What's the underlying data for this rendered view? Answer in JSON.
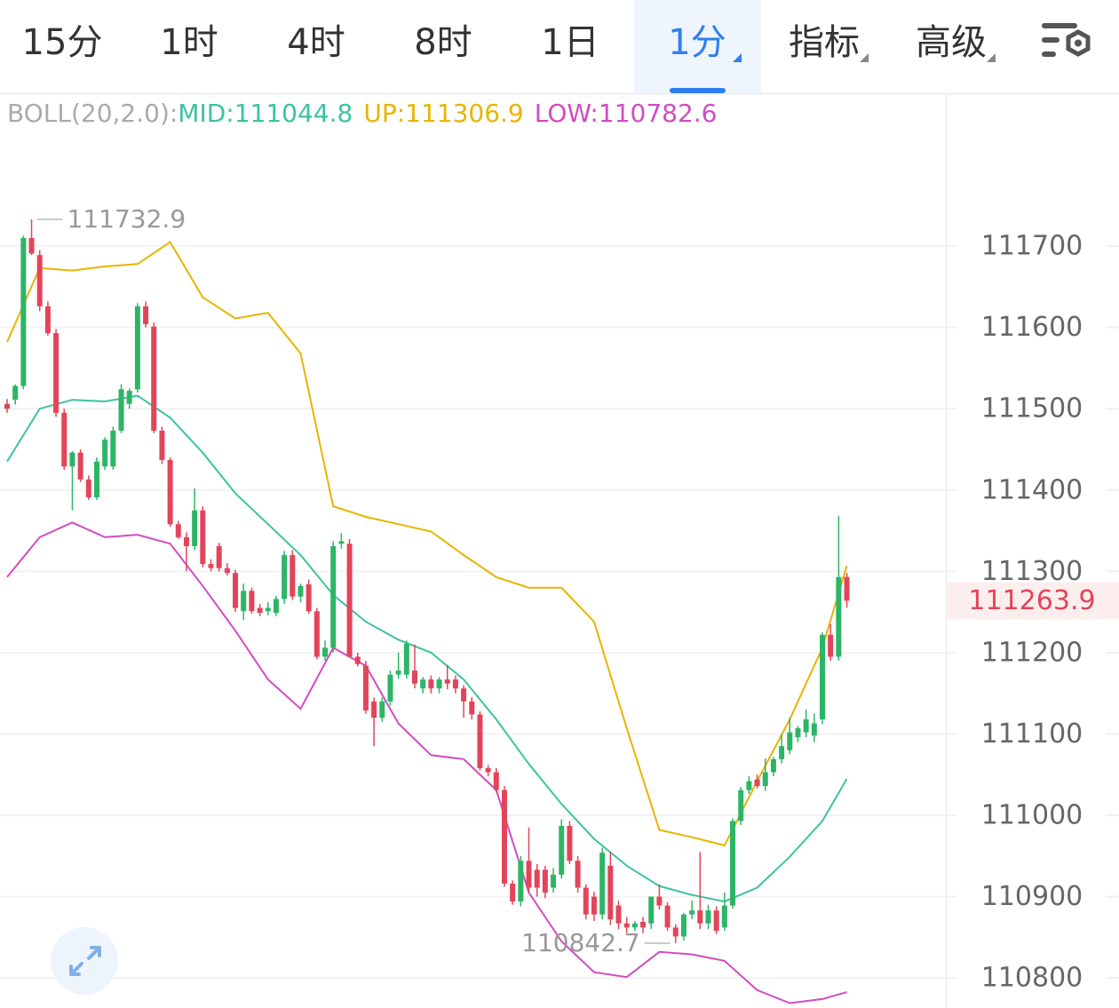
{
  "tabs": [
    "15分",
    "1时",
    "4时",
    "8时",
    "1日",
    "1分",
    "指标",
    "高级"
  ],
  "active_tab": 5,
  "chart_data": {
    "type": "candlestick",
    "ylim": [
      110763,
      111888
    ],
    "yticks": [
      110800,
      110900,
      111000,
      111100,
      111200,
      111300,
      111400,
      111500,
      111600,
      111700
    ],
    "grid": true,
    "up_color": "#2db566",
    "down_color": "#e2455a",
    "candles": [
      [
        111506,
        111512,
        111495,
        111500
      ],
      [
        111511,
        111530,
        111505,
        111528
      ],
      [
        111528,
        111713,
        111524,
        111710
      ],
      [
        111710,
        111732.9,
        111689,
        111691
      ],
      [
        111689,
        111695,
        111620,
        111626
      ],
      [
        111626,
        111632,
        111590,
        111593
      ],
      [
        111593,
        111598,
        111490,
        111495
      ],
      [
        111495,
        111500,
        111425,
        111429
      ],
      [
        111429,
        111448,
        111375,
        111446
      ],
      [
        111446,
        111450,
        111410,
        111413
      ],
      [
        111413,
        111418,
        111388,
        111391
      ],
      [
        111391,
        111440,
        111388,
        111435
      ],
      [
        111429,
        111465,
        111425,
        111462
      ],
      [
        111429,
        111478,
        111425,
        111473
      ],
      [
        111473,
        111530,
        111470,
        111524
      ],
      [
        111506,
        111525,
        111500,
        111522
      ],
      [
        111524,
        111630,
        111520,
        111626
      ],
      [
        111626,
        111632,
        111600,
        111604
      ],
      [
        111601,
        111606,
        111470,
        111473
      ],
      [
        111473,
        111478,
        111432,
        111437
      ],
      [
        111437,
        111440,
        111355,
        111358
      ],
      [
        111358,
        111362,
        111340,
        111342
      ],
      [
        111342,
        111348,
        111300,
        111331
      ],
      [
        111331,
        111402,
        111326,
        111375
      ],
      [
        111375,
        111380,
        111305,
        111309
      ],
      [
        111309,
        111315,
        111300,
        111304
      ],
      [
        111331,
        111335,
        111300,
        111304
      ],
      [
        111304,
        111310,
        111295,
        111298
      ],
      [
        111298,
        111302,
        111250,
        111255
      ],
      [
        111251,
        111285,
        111240,
        111276
      ],
      [
        111276,
        111280,
        111248,
        111251
      ],
      [
        111255,
        111260,
        111245,
        111249
      ],
      [
        111251,
        111262,
        111246,
        111255
      ],
      [
        111249,
        111270,
        111245,
        111266
      ],
      [
        111266,
        111325,
        111260,
        111320
      ],
      [
        111320,
        111326,
        111265,
        111269
      ],
      [
        111269,
        111285,
        111262,
        111282
      ],
      [
        111284,
        111290,
        111248,
        111251
      ],
      [
        111251,
        111255,
        111192,
        111195
      ],
      [
        111195,
        111215,
        111190,
        111206
      ],
      [
        111206,
        111337,
        111200,
        111331
      ],
      [
        111334,
        111347,
        111328,
        111337
      ],
      [
        111334,
        111340,
        111198,
        111195
      ],
      [
        111195,
        111200,
        111183,
        111186
      ],
      [
        111184,
        111190,
        111125,
        111129
      ],
      [
        111140,
        111145,
        111085,
        111120
      ],
      [
        111120,
        111145,
        111115,
        111140
      ],
      [
        111140,
        111178,
        111135,
        111173
      ],
      [
        111173,
        111200,
        111168,
        111178
      ],
      [
        111173,
        111215,
        111168,
        111211
      ],
      [
        111178,
        111210,
        111156,
        111162
      ],
      [
        111156,
        111170,
        111150,
        111167
      ],
      [
        111167,
        111172,
        111150,
        111156
      ],
      [
        111156,
        111170,
        111150,
        111167
      ],
      [
        111167,
        111185,
        111155,
        111162
      ],
      [
        111167,
        111172,
        111150,
        111156
      ],
      [
        111156,
        111160,
        111120,
        111140
      ],
      [
        111140,
        111145,
        111118,
        111124
      ],
      [
        111124,
        111128,
        111055,
        111058
      ],
      [
        111058,
        111062,
        111048,
        111053
      ],
      [
        111053,
        111058,
        111028,
        111031
      ],
      [
        111031,
        111036,
        110912,
        110916
      ],
      [
        110916,
        110920,
        110890,
        110894
      ],
      [
        110894,
        110950,
        110888,
        110944
      ],
      [
        110944,
        110985,
        110905,
        110911
      ],
      [
        110933,
        110940,
        110900,
        110911
      ],
      [
        110933,
        110938,
        110898,
        110905
      ],
      [
        110911,
        110935,
        110905,
        110927
      ],
      [
        110927,
        110995,
        110922,
        110987
      ],
      [
        110987,
        110993,
        110940,
        110944
      ],
      [
        110944,
        110950,
        110905,
        110911
      ],
      [
        110911,
        110915,
        110872,
        110878
      ],
      [
        110900,
        110906,
        110870,
        110878
      ],
      [
        110878,
        110960,
        110872,
        110954
      ],
      [
        110938,
        110955,
        110865,
        110872
      ],
      [
        110889,
        110895,
        110860,
        110867
      ],
      [
        110867,
        110875,
        110855,
        110862
      ],
      [
        110862,
        110870,
        110858,
        110867
      ],
      [
        110869,
        110875,
        110855,
        110862
      ],
      [
        110867,
        110900,
        110860,
        110900
      ],
      [
        110900,
        110915,
        110884,
        110889
      ],
      [
        110889,
        110893,
        110858,
        110862
      ],
      [
        110862,
        110866,
        110842.7,
        110851
      ],
      [
        110851,
        110880,
        110846,
        110878
      ],
      [
        110878,
        110895,
        110872,
        110883
      ],
      [
        110883,
        110955,
        110860,
        110867
      ],
      [
        110867,
        110890,
        110860,
        110883
      ],
      [
        110883,
        110888,
        110854,
        110858
      ],
      [
        110862,
        110905,
        110858,
        110889
      ],
      [
        110889,
        110996,
        110885,
        110993
      ],
      [
        110993,
        111035,
        110988,
        111031
      ],
      [
        111031,
        111048,
        111026,
        111042
      ],
      [
        111044,
        111050,
        111033,
        111036
      ],
      [
        111036,
        111070,
        111030,
        111053
      ],
      [
        111053,
        111072,
        111048,
        111069
      ],
      [
        111069,
        111100,
        111064,
        111085
      ],
      [
        111080,
        111120,
        111075,
        111102
      ],
      [
        111096,
        111110,
        111090,
        111107
      ],
      [
        111102,
        111130,
        111096,
        111118
      ],
      [
        111098,
        111125,
        111090,
        111113
      ],
      [
        111118,
        111225,
        111112,
        111222
      ],
      [
        111222,
        111235,
        111190,
        111195
      ],
      [
        111195,
        111368,
        111190,
        111293
      ],
      [
        111293,
        111298,
        111255,
        111263.9
      ]
    ],
    "indicator": {
      "label": "BOLL(20,2.0):",
      "x": [
        0,
        4,
        8,
        12,
        16,
        20,
        24,
        28,
        32,
        36,
        40,
        44,
        48,
        52,
        56,
        60,
        64,
        68,
        72,
        76,
        80,
        84,
        88,
        92,
        96,
        100,
        103
      ],
      "series": [
        {
          "name": "MID:",
          "color": "#3cc3a0",
          "values": [
            111435,
            111500,
            111511,
            111509,
            111516,
            111489,
            111446,
            111396,
            111358,
            111320,
            111271,
            111238,
            111216,
            111200,
            111167,
            111118,
            111063,
            111014,
            110971,
            110938,
            110913,
            110902,
            110894,
            110911,
            110949,
            110993,
            111044.8
          ]
        },
        {
          "name": "UP:",
          "color": "#e8b400",
          "values": [
            111582,
            111673,
            111670,
            111675,
            111678,
            111705,
            111637,
            111611,
            111618,
            111568,
            111380,
            111367,
            111358,
            111349,
            111320,
            111293,
            111280,
            111280,
            111238,
            111107,
            110982,
            110973,
            110963,
            111042,
            111118,
            111206,
            111306.9
          ]
        },
        {
          "name": "LOW:",
          "color": "#d04cc0",
          "values": [
            111293,
            111342,
            111360,
            111342,
            111345,
            111334,
            111282,
            111227,
            111167,
            111131,
            111206,
            111184,
            111113,
            111074,
            111069,
            111031,
            110905,
            110845,
            110807,
            110801,
            110832,
            110829,
            110821,
            110785,
            110769,
            110774,
            110782.6
          ]
        }
      ]
    }
  }
}
